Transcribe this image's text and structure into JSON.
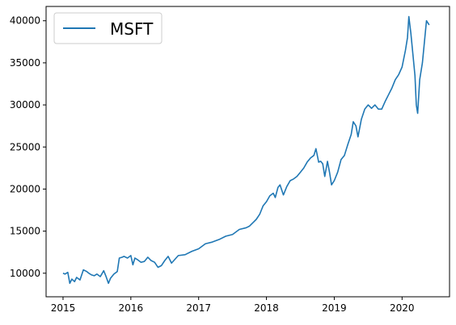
{
  "chart_data": {
    "type": "line",
    "title": "",
    "xlabel": "",
    "ylabel": "",
    "xlim": [
      2014.75,
      2020.7
    ],
    "ylim": [
      7200,
      41700
    ],
    "x_ticks": [
      2015,
      2016,
      2017,
      2018,
      2019,
      2020
    ],
    "x_tick_labels": [
      "2015",
      "2016",
      "2017",
      "2018",
      "2019",
      "2020"
    ],
    "y_ticks": [
      10000,
      15000,
      20000,
      25000,
      30000,
      35000,
      40000
    ],
    "y_tick_labels": [
      "10000",
      "15000",
      "20000",
      "25000",
      "30000",
      "35000",
      "40000"
    ],
    "grid": false,
    "legend_position": "upper-left",
    "series": [
      {
        "name": "MSFT",
        "color": "#1f77b4",
        "x": [
          2015.0,
          2015.03,
          2015.07,
          2015.1,
          2015.13,
          2015.17,
          2015.2,
          2015.25,
          2015.3,
          2015.35,
          2015.38,
          2015.42,
          2015.46,
          2015.5,
          2015.55,
          2015.6,
          2015.63,
          2015.67,
          2015.7,
          2015.75,
          2015.8,
          2015.83,
          2015.87,
          2015.9,
          2015.95,
          2016.0,
          2016.03,
          2016.06,
          2016.1,
          2016.15,
          2016.2,
          2016.25,
          2016.3,
          2016.35,
          2016.4,
          2016.45,
          2016.5,
          2016.55,
          2016.6,
          2016.7,
          2016.8,
          2016.9,
          2017.0,
          2017.1,
          2017.2,
          2017.3,
          2017.4,
          2017.5,
          2017.6,
          2017.7,
          2017.75,
          2017.8,
          2017.85,
          2017.9,
          2017.95,
          2018.0,
          2018.05,
          2018.1,
          2018.13,
          2018.17,
          2018.2,
          2018.25,
          2018.3,
          2018.35,
          2018.4,
          2018.45,
          2018.5,
          2018.55,
          2018.6,
          2018.65,
          2018.7,
          2018.73,
          2018.77,
          2018.8,
          2018.83,
          2018.86,
          2018.9,
          2018.93,
          2018.96,
          2019.0,
          2019.05,
          2019.1,
          2019.15,
          2019.2,
          2019.25,
          2019.28,
          2019.32,
          2019.35,
          2019.4,
          2019.45,
          2019.5,
          2019.55,
          2019.6,
          2019.65,
          2019.7,
          2019.75,
          2019.8,
          2019.85,
          2019.9,
          2019.95,
          2020.0,
          2020.05,
          2020.08,
          2020.1,
          2020.13,
          2020.16,
          2020.19,
          2020.21,
          2020.23,
          2020.26,
          2020.3,
          2020.33,
          2020.36,
          2020.4
        ],
        "y": [
          10000,
          9900,
          10100,
          8800,
          9300,
          9000,
          9500,
          9200,
          10400,
          10200,
          10000,
          9800,
          9700,
          9900,
          9600,
          10300,
          9700,
          8800,
          9400,
          9900,
          10200,
          11800,
          11900,
          12000,
          11800,
          12100,
          11000,
          11800,
          11600,
          11300,
          11400,
          11900,
          11500,
          11300,
          10700,
          10900,
          11500,
          12000,
          11200,
          12100,
          12200,
          12600,
          12900,
          13500,
          13700,
          14000,
          14400,
          14600,
          15200,
          15400,
          15600,
          16000,
          16400,
          17000,
          18000,
          18500,
          19200,
          19500,
          19000,
          20200,
          20500,
          19300,
          20300,
          21000,
          21200,
          21500,
          22000,
          22500,
          23200,
          23700,
          24000,
          24800,
          23200,
          23300,
          23000,
          21500,
          23300,
          22000,
          20500,
          21000,
          22000,
          23500,
          24000,
          25300,
          26500,
          28000,
          27500,
          26200,
          28300,
          29500,
          30000,
          29600,
          30000,
          29500,
          29500,
          30400,
          31200,
          32000,
          33000,
          33600,
          34500,
          36500,
          38000,
          40500,
          38500,
          36000,
          33500,
          30000,
          29000,
          33000,
          35000,
          37500,
          40000,
          39500
        ]
      }
    ]
  }
}
